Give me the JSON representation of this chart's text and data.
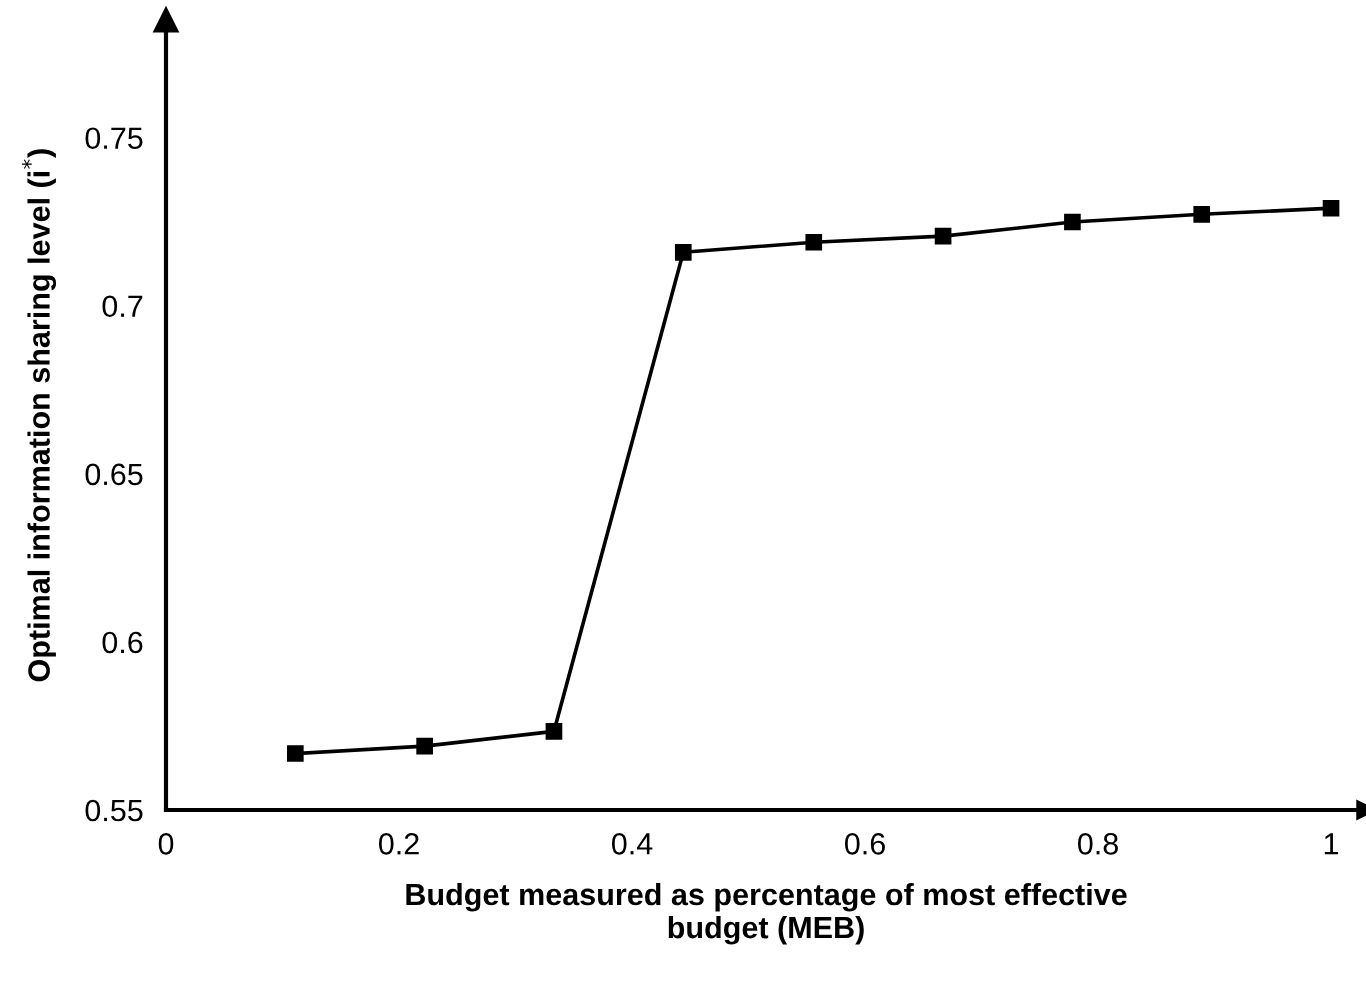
{
  "chart_data": {
    "type": "line",
    "xlabel": "Budget measured as percentage of most effective\nbudget (MEB)",
    "ylabel": "Optimal information sharing level (i$^{*}$)",
    "x": [
      0.111,
      0.222,
      0.333,
      0.444,
      0.556,
      0.667,
      0.778,
      0.889,
      1.0
    ],
    "series": [
      {
        "color": "#000000",
        "values": [
          0.5668,
          0.569,
          0.5734,
          0.7159,
          0.7189,
          0.7207,
          0.7249,
          0.7272,
          0.729
        ]
      }
    ],
    "xlim": [
      0,
      1.03
    ],
    "ylim": [
      0.55,
      0.785
    ],
    "xticks": [
      0,
      0.2,
      0.4,
      0.6,
      0.8,
      1
    ],
    "yticks": [
      0.55,
      0.6,
      0.65,
      0.7,
      0.75
    ],
    "marker": "square",
    "line_style": "solid",
    "grid": false,
    "legend": false
  }
}
